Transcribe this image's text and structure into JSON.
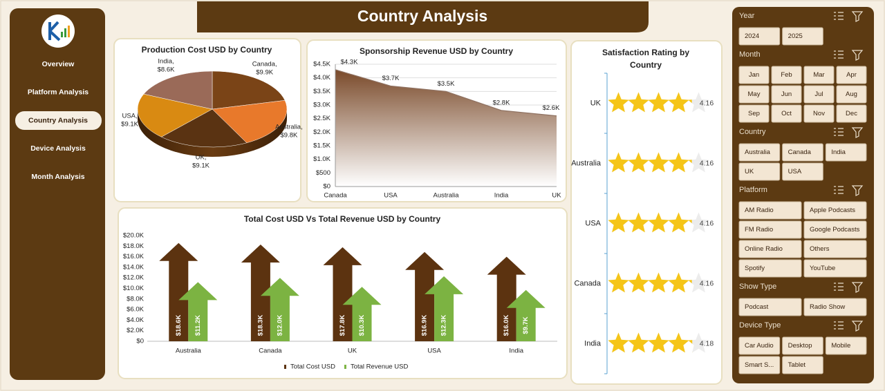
{
  "sidebar": {
    "nav": [
      "Overview",
      "Platform Analysis",
      "Country Analysis",
      "Device Analysis",
      "Month Analysis"
    ]
  },
  "header": {
    "title": "Country Analysis"
  },
  "chart_data": [
    {
      "type": "pie",
      "title": "Production Cost USD by Country",
      "values": [
        9900,
        9800,
        9100,
        9100,
        8600
      ],
      "value_labels": [
        "Canada, $9.9K",
        "Australia, $9.8K",
        "UK, $9.1K",
        "USA, $9.1K",
        "India, $8.6K"
      ],
      "colors": [
        "#7a4417",
        "#e8792b",
        "#5a3312",
        "#d98a12",
        "#9a6a58"
      ]
    },
    {
      "type": "area",
      "title": "Sponsorship Revenue USD by Country",
      "categories": [
        "Canada",
        "USA",
        "Australia",
        "India",
        "UK"
      ],
      "values": [
        4300,
        3700,
        3500,
        2800,
        2600
      ],
      "value_labels": [
        "$4.3K",
        "$3.7K",
        "$3.5K",
        "$2.8K",
        "$2.6K"
      ],
      "color": "#7a4a2a",
      "ylim": [
        0,
        4500
      ],
      "yticks": [
        {
          "value": 0,
          "label": "$0"
        },
        {
          "value": 500,
          "label": "$500"
        },
        {
          "value": 1000,
          "label": "$1.0K"
        },
        {
          "value": 1500,
          "label": "$1.5K"
        },
        {
          "value": 2000,
          "label": "$2.0K"
        },
        {
          "value": 2500,
          "label": "$2.5K"
        },
        {
          "value": 3000,
          "label": "$3.0K"
        },
        {
          "value": 3500,
          "label": "$3.5K"
        },
        {
          "value": 4000,
          "label": "$4.0K"
        },
        {
          "value": 4500,
          "label": "$4.5K"
        }
      ],
      "grid": true
    },
    {
      "type": "arrow-bar",
      "title": "Total Cost USD Vs Total Revenue USD by Country",
      "categories": [
        "Australia",
        "Canada",
        "UK",
        "USA",
        "India"
      ],
      "series": [
        {
          "name": "Total Cost USD",
          "color": "#5c3310",
          "values": [
            18600,
            18300,
            17800,
            16900,
            16000
          ],
          "value_labels": [
            "$18.6K",
            "$18.3K",
            "$17.8K",
            "$16.9K",
            "$16.0K"
          ]
        },
        {
          "name": "Total Revenue USD",
          "color": "#7cb342",
          "values": [
            11200,
            12000,
            10300,
            12300,
            9700
          ],
          "value_labels": [
            "$11.2K",
            "$12.0K",
            "$10.3K",
            "$12.3K",
            "$9.7K"
          ]
        }
      ],
      "ylim": [
        0,
        20000
      ],
      "yticks": [
        {
          "value": 0,
          "label": "$0"
        },
        {
          "value": 2000,
          "label": "$2.0K"
        },
        {
          "value": 4000,
          "label": "$4.0K"
        },
        {
          "value": 6000,
          "label": "$6.0K"
        },
        {
          "value": 8000,
          "label": "$8.0K"
        },
        {
          "value": 10000,
          "label": "$10.0K"
        },
        {
          "value": 12000,
          "label": "$12.0K"
        },
        {
          "value": 14000,
          "label": "$14.0K"
        },
        {
          "value": 16000,
          "label": "$16.0K"
        },
        {
          "value": 18000,
          "label": "$18.0K"
        },
        {
          "value": 20000,
          "label": "$20.0K"
        }
      ],
      "grid": false,
      "legend": "bottom"
    },
    {
      "type": "rating",
      "title": "Satisfaction Rating by Country",
      "categories": [
        "UK",
        "Australia",
        "USA",
        "Canada",
        "India"
      ],
      "values": [
        4.16,
        4.16,
        4.16,
        4.16,
        4.18
      ],
      "xlim": [
        0,
        5
      ],
      "color": "#f5c518"
    }
  ],
  "slicers": [
    {
      "title": "Year",
      "items": [
        "2024",
        "2025"
      ]
    },
    {
      "title": "Month",
      "items": [
        "Jan",
        "Feb",
        "Mar",
        "Apr",
        "May",
        "Jun",
        "Jul",
        "Aug",
        "Sep",
        "Oct",
        "Nov",
        "Dec"
      ]
    },
    {
      "title": "Country",
      "items": [
        "Australia",
        "Canada",
        "India",
        "UK",
        "USA"
      ]
    },
    {
      "title": "Platform",
      "items": [
        "AM Radio",
        "Apple Podcasts",
        "FM Radio",
        "Google Podcasts",
        "Online Radio",
        "Others",
        "Spotify",
        "YouTube"
      ]
    },
    {
      "title": "Show Type",
      "items": [
        "Podcast",
        "Radio Show"
      ]
    },
    {
      "title": "Device Type",
      "items": [
        "Car Audio",
        "Desktop",
        "Mobile",
        "Smart S...",
        "Tablet"
      ]
    }
  ]
}
